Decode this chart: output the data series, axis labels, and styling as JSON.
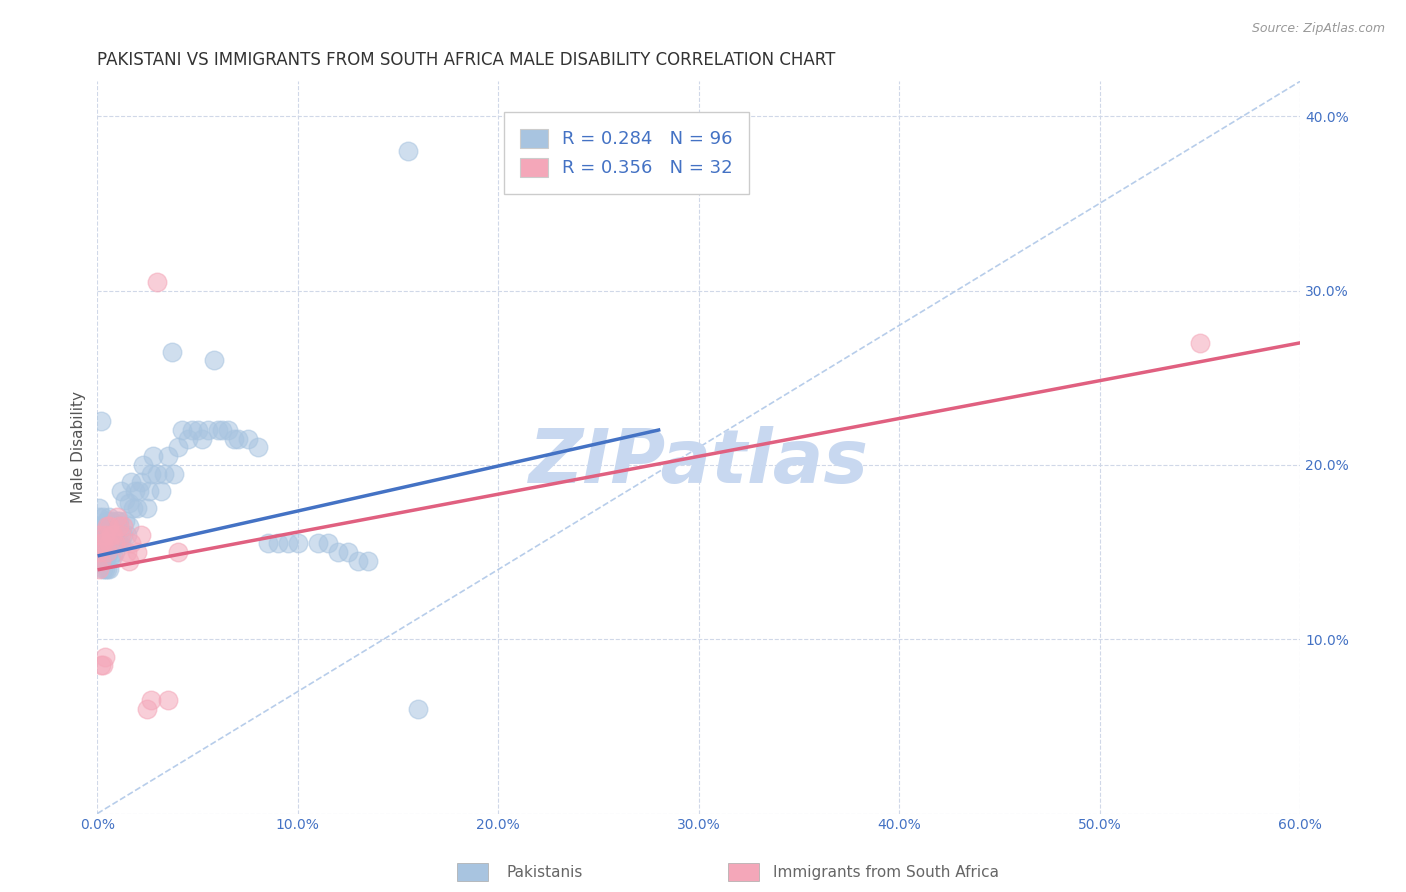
{
  "title": "PAKISTANI VS IMMIGRANTS FROM SOUTH AFRICA MALE DISABILITY CORRELATION CHART",
  "source": "Source: ZipAtlas.com",
  "ylabel": "Male Disability",
  "x_min": 0.0,
  "x_max": 0.6,
  "y_min": 0.0,
  "y_max": 0.42,
  "x_ticks": [
    0.0,
    0.1,
    0.2,
    0.3,
    0.4,
    0.5,
    0.6
  ],
  "y_ticks": [
    0.0,
    0.1,
    0.2,
    0.3,
    0.4
  ],
  "x_tick_labels": [
    "0.0%",
    "10.0%",
    "20.0%",
    "30.0%",
    "40.0%",
    "50.0%",
    "60.0%"
  ],
  "y_tick_labels_right": [
    "",
    "10.0%",
    "20.0%",
    "30.0%",
    "40.0%"
  ],
  "legend_labels": [
    "Pakistanis",
    "Immigrants from South Africa"
  ],
  "blue_color": "#a8c4e0",
  "pink_color": "#f4a7b9",
  "blue_line_color": "#4472c4",
  "pink_line_color": "#e06080",
  "diag_line_color": "#b0c8e8",
  "R_blue": 0.284,
  "N_blue": 96,
  "R_pink": 0.356,
  "N_pink": 32,
  "blue_points_x": [
    0.001,
    0.001,
    0.001,
    0.001,
    0.001,
    0.001,
    0.001,
    0.002,
    0.002,
    0.002,
    0.002,
    0.002,
    0.002,
    0.002,
    0.003,
    0.003,
    0.003,
    0.003,
    0.003,
    0.003,
    0.004,
    0.004,
    0.004,
    0.004,
    0.005,
    0.005,
    0.005,
    0.005,
    0.006,
    0.006,
    0.006,
    0.006,
    0.007,
    0.007,
    0.007,
    0.008,
    0.008,
    0.008,
    0.009,
    0.009,
    0.01,
    0.01,
    0.011,
    0.011,
    0.012,
    0.012,
    0.013,
    0.014,
    0.014,
    0.015,
    0.016,
    0.016,
    0.017,
    0.018,
    0.019,
    0.02,
    0.021,
    0.022,
    0.023,
    0.025,
    0.026,
    0.027,
    0.028,
    0.03,
    0.032,
    0.033,
    0.035,
    0.037,
    0.038,
    0.04,
    0.042,
    0.045,
    0.047,
    0.05,
    0.052,
    0.055,
    0.058,
    0.06,
    0.062,
    0.065,
    0.068,
    0.07,
    0.075,
    0.08,
    0.085,
    0.09,
    0.095,
    0.1,
    0.11,
    0.115,
    0.12,
    0.125,
    0.13,
    0.135,
    0.155,
    0.16
  ],
  "blue_points_y": [
    0.145,
    0.15,
    0.155,
    0.16,
    0.165,
    0.17,
    0.175,
    0.145,
    0.148,
    0.15,
    0.155,
    0.16,
    0.165,
    0.225,
    0.14,
    0.148,
    0.155,
    0.16,
    0.165,
    0.17,
    0.14,
    0.148,
    0.155,
    0.165,
    0.14,
    0.148,
    0.158,
    0.168,
    0.14,
    0.15,
    0.16,
    0.17,
    0.148,
    0.158,
    0.168,
    0.148,
    0.155,
    0.165,
    0.15,
    0.165,
    0.155,
    0.168,
    0.155,
    0.168,
    0.155,
    0.185,
    0.16,
    0.168,
    0.18,
    0.16,
    0.165,
    0.178,
    0.19,
    0.175,
    0.185,
    0.175,
    0.185,
    0.19,
    0.2,
    0.175,
    0.185,
    0.195,
    0.205,
    0.195,
    0.185,
    0.195,
    0.205,
    0.265,
    0.195,
    0.21,
    0.22,
    0.215,
    0.22,
    0.22,
    0.215,
    0.22,
    0.26,
    0.22,
    0.22,
    0.22,
    0.215,
    0.215,
    0.215,
    0.21,
    0.155,
    0.155,
    0.155,
    0.155,
    0.155,
    0.155,
    0.15,
    0.15,
    0.145,
    0.145,
    0.38,
    0.06
  ],
  "pink_points_x": [
    0.001,
    0.001,
    0.001,
    0.002,
    0.002,
    0.002,
    0.003,
    0.003,
    0.004,
    0.004,
    0.005,
    0.005,
    0.006,
    0.006,
    0.007,
    0.008,
    0.009,
    0.01,
    0.011,
    0.012,
    0.013,
    0.015,
    0.016,
    0.017,
    0.02,
    0.022,
    0.025,
    0.027,
    0.03,
    0.035,
    0.04,
    0.55
  ],
  "pink_points_y": [
    0.14,
    0.15,
    0.16,
    0.085,
    0.145,
    0.155,
    0.085,
    0.155,
    0.09,
    0.16,
    0.15,
    0.165,
    0.155,
    0.165,
    0.16,
    0.16,
    0.155,
    0.17,
    0.165,
    0.16,
    0.165,
    0.15,
    0.145,
    0.155,
    0.15,
    0.16,
    0.06,
    0.065,
    0.305,
    0.065,
    0.15,
    0.27
  ],
  "watermark": "ZIPatlas",
  "watermark_color": "#c8d8f0",
  "background_color": "#ffffff",
  "grid_color": "#d0d8e8",
  "title_fontsize": 12,
  "axis_label_fontsize": 11,
  "tick_fontsize": 10,
  "legend_fontsize": 12,
  "blue_line_x": [
    0.001,
    0.28
  ],
  "blue_line_y_start": 0.148,
  "blue_line_y_end": 0.22,
  "pink_line_x": [
    0.001,
    0.6
  ],
  "pink_line_y_start": 0.14,
  "pink_line_y_end": 0.27
}
